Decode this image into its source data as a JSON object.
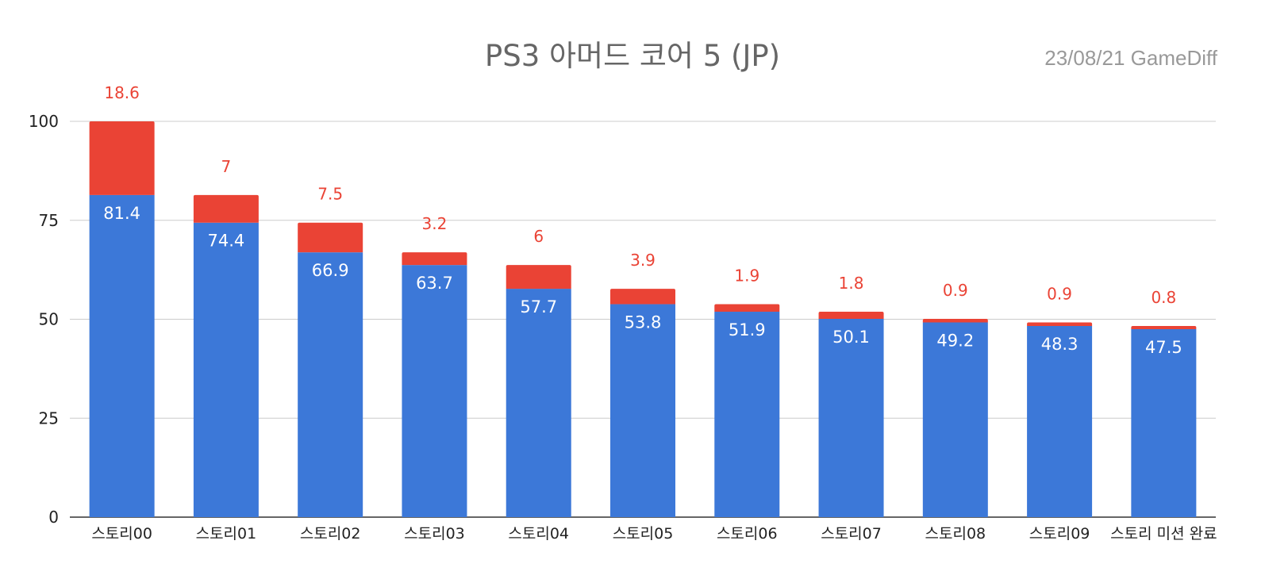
{
  "chart_data": {
    "type": "bar",
    "stacked": true,
    "title": "PS3 아머드 코어 5 (JP)",
    "watermark": "23/08/21  GameDiff",
    "categories": [
      "스토리00",
      "스토리01",
      "스토리02",
      "스토리03",
      "스토리04",
      "스토리05",
      "스토리06",
      "스토리07",
      "스토리08",
      "스토리09",
      "스토리 미션 완료"
    ],
    "series": [
      {
        "name": "base",
        "color": "#3c78d8",
        "values": [
          81.4,
          74.4,
          66.9,
          63.7,
          57.7,
          53.8,
          51.9,
          50.1,
          49.2,
          48.3,
          47.5
        ]
      },
      {
        "name": "drop",
        "color": "#ea4335",
        "values": [
          18.6,
          7,
          7.5,
          3.2,
          6,
          3.9,
          1.9,
          1.8,
          0.9,
          0.9,
          0.8
        ]
      }
    ],
    "labels": {
      "base": [
        "81.4",
        "74.4",
        "66.9",
        "63.7",
        "57.7",
        "53.8",
        "51.9",
        "50.1",
        "49.2",
        "48.3",
        "47.5"
      ],
      "drop": [
        "18.6",
        "7",
        "7.5",
        "3.2",
        "6",
        "3.9",
        "1.9",
        "1.8",
        "0.9",
        "0.9",
        "0.8"
      ]
    },
    "yticks": [
      "0",
      "25",
      "50",
      "75",
      "100"
    ],
    "ylim": [
      0,
      100
    ],
    "xlabel": "",
    "ylabel": "",
    "grid": true
  }
}
